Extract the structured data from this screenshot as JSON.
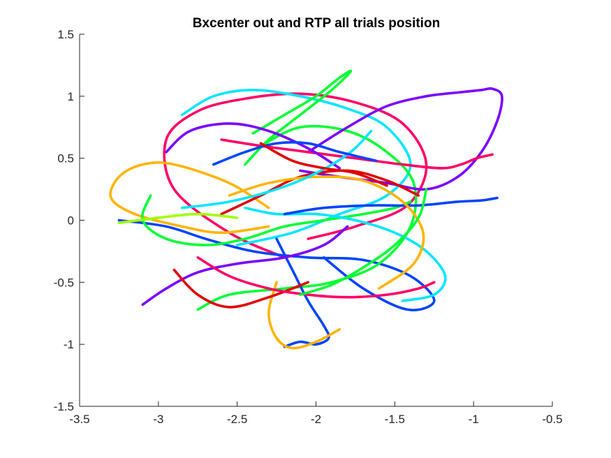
{
  "chart_data": {
    "type": "line",
    "title": "Bxcenter out and RTP all trials position",
    "xlabel": "",
    "ylabel": "",
    "xlim": [
      -3.5,
      -0.5
    ],
    "ylim": [
      -1.5,
      1.5
    ],
    "xticks": [
      -3.5,
      -3,
      -2.5,
      -2,
      -1.5,
      -1,
      -0.5
    ],
    "xtick_labels": [
      "-3.5",
      "-3",
      "-2.5",
      "-2",
      "-1.5",
      "-1",
      "-0.5"
    ],
    "yticks": [
      -1.5,
      -1,
      -0.5,
      0,
      0.5,
      1,
      1.5
    ],
    "ytick_labels": [
      "-1.5",
      "-1",
      "-0.5",
      "0",
      "0.5",
      "1",
      "1.5"
    ],
    "grid": false,
    "legend": "none",
    "colors": [
      "#7a00ff",
      "#0044ff",
      "#00e5ff",
      "#00ff33",
      "#ffb400",
      "#ff0066",
      "#e00000",
      "#a0ff00"
    ],
    "series": [
      {
        "color": "#ff0066",
        "x": [
          -2.2,
          -2.55,
          -2.9,
          -2.95,
          -2.75,
          -2.45,
          -2.1,
          -1.75,
          -1.45,
          -1.3,
          -1.42,
          -1.75,
          -2.05
        ],
        "y": [
          -0.3,
          -0.1,
          0.25,
          0.65,
          0.88,
          0.98,
          1.02,
          0.95,
          0.78,
          0.45,
          0.12,
          -0.05,
          -0.15
        ]
      },
      {
        "color": "#00e5ff",
        "x": [
          -2.85,
          -2.65,
          -2.4,
          -2.1,
          -1.8,
          -1.55,
          -1.4,
          -1.55,
          -1.85,
          -2.15,
          -2.5
        ],
        "y": [
          0.85,
          1.0,
          1.05,
          1.0,
          0.9,
          0.75,
          0.45,
          0.2,
          0.05,
          -0.1,
          -0.2
        ]
      },
      {
        "color": "#0044ff",
        "x": [
          -3.25,
          -2.95,
          -2.7,
          -2.4,
          -2.05,
          -1.7,
          -1.4,
          -1.25,
          -1.42,
          -1.7,
          -1.95
        ],
        "y": [
          0.0,
          -0.05,
          -0.15,
          -0.25,
          -0.3,
          -0.32,
          -0.45,
          -0.65,
          -0.72,
          -0.55,
          -0.3
        ]
      },
      {
        "color": "#ffb400",
        "x": [
          -2.3,
          -2.55,
          -2.9,
          -3.1,
          -3.25,
          -3.3,
          -3.15,
          -2.85,
          -2.6,
          -2.3
        ],
        "y": [
          0.1,
          0.3,
          0.45,
          0.45,
          0.35,
          0.18,
          0.05,
          -0.05,
          -0.1,
          -0.05
        ]
      },
      {
        "color": "#00ff33",
        "x": [
          -2.75,
          -2.55,
          -2.2,
          -1.9,
          -1.6,
          -1.4,
          -1.38,
          -1.55,
          -1.8,
          -2.1,
          -2.35
        ],
        "y": [
          -0.72,
          -0.6,
          -0.55,
          -0.5,
          -0.35,
          -0.05,
          0.3,
          0.55,
          0.72,
          0.75,
          0.6
        ]
      },
      {
        "color": "#7a00ff",
        "x": [
          -2.05,
          -1.8,
          -1.55,
          -1.3,
          -1.1,
          -0.95,
          -0.88,
          -0.82,
          -0.85,
          -0.95,
          -1.1,
          -1.3,
          -1.55,
          -1.85,
          -2.1
        ],
        "y": [
          0.55,
          0.75,
          0.92,
          1.0,
          1.03,
          1.05,
          1.06,
          1.0,
          0.8,
          0.55,
          0.35,
          0.25,
          0.3,
          0.35,
          0.4
        ]
      },
      {
        "color": "#e00000",
        "x": [
          -2.6,
          -2.35,
          -2.1,
          -1.8,
          -1.55,
          -1.35
        ],
        "y": [
          0.05,
          0.2,
          0.35,
          0.4,
          0.32,
          0.2
        ]
      },
      {
        "color": "#0044ff",
        "x": [
          -2.25,
          -2.15,
          -2.05,
          -1.95,
          -1.92,
          -2.0,
          -2.1,
          -2.2
        ],
        "y": [
          -0.15,
          -0.4,
          -0.65,
          -0.85,
          -0.95,
          -1.0,
          -0.98,
          -1.02
        ]
      },
      {
        "color": "#ffb400",
        "x": [
          -2.25,
          -2.3,
          -2.25,
          -2.15,
          -2.0,
          -1.85
        ],
        "y": [
          -0.5,
          -0.75,
          -0.95,
          -1.03,
          -0.98,
          -0.88
        ]
      },
      {
        "color": "#00ff33",
        "x": [
          -3.05,
          -3.1,
          -2.95,
          -2.7,
          -2.45,
          -2.2,
          -1.95,
          -1.7,
          -1.5,
          -1.4
        ],
        "y": [
          0.2,
          0.0,
          -0.15,
          -0.2,
          -0.15,
          -0.05,
          0.0,
          0.05,
          0.1,
          0.15
        ]
      },
      {
        "color": "#7a00ff",
        "x": [
          -3.1,
          -2.95,
          -2.75,
          -2.5,
          -2.2,
          -1.95,
          -1.8
        ],
        "y": [
          -0.68,
          -0.55,
          -0.42,
          -0.35,
          -0.3,
          -0.2,
          -0.05
        ]
      },
      {
        "color": "#00e5ff",
        "x": [
          -2.45,
          -2.25,
          -2.0,
          -1.75,
          -1.5,
          -1.3,
          -1.18,
          -1.25,
          -1.45
        ],
        "y": [
          0.1,
          0.05,
          0.05,
          0.0,
          -0.1,
          -0.25,
          -0.45,
          -0.6,
          -0.65
        ]
      },
      {
        "color": "#ff0066",
        "x": [
          -2.6,
          -2.35,
          -2.05,
          -1.75,
          -1.45,
          -1.2,
          -1.08,
          -0.98,
          -0.88
        ],
        "y": [
          0.65,
          0.6,
          0.55,
          0.5,
          0.45,
          0.42,
          0.45,
          0.5,
          0.53
        ]
      },
      {
        "color": "#a0ff00",
        "x": [
          -3.25,
          -3.0,
          -2.75,
          -2.5
        ],
        "y": [
          -0.02,
          0.02,
          0.05,
          0.02
        ]
      },
      {
        "color": "#0044ff",
        "x": [
          -2.2,
          -1.95,
          -1.65,
          -1.35,
          -1.1,
          -0.95,
          -0.85
        ],
        "y": [
          0.05,
          0.1,
          0.12,
          0.12,
          0.15,
          0.16,
          0.18
        ]
      },
      {
        "color": "#e00000",
        "x": [
          -2.9,
          -2.75,
          -2.55,
          -2.3,
          -2.05
        ],
        "y": [
          -0.4,
          -0.6,
          -0.7,
          -0.62,
          -0.5
        ]
      },
      {
        "color": "#00ff33",
        "x": [
          -2.4,
          -2.2,
          -2.0,
          -1.85,
          -1.78,
          -1.9,
          -2.1,
          -2.3,
          -2.45
        ],
        "y": [
          0.7,
          0.85,
          1.0,
          1.15,
          1.2,
          1.05,
          0.85,
          0.65,
          0.45
        ]
      },
      {
        "color": "#ffb400",
        "x": [
          -2.55,
          -2.3,
          -2.0,
          -1.7,
          -1.45,
          -1.32,
          -1.38,
          -1.6
        ],
        "y": [
          0.2,
          0.3,
          0.35,
          0.32,
          0.15,
          -0.1,
          -0.35,
          -0.55
        ]
      },
      {
        "color": "#7a00ff",
        "x": [
          -2.95,
          -2.8,
          -2.55,
          -2.3,
          -2.05,
          -1.85
        ],
        "y": [
          0.55,
          0.72,
          0.78,
          0.72,
          0.58,
          0.42
        ]
      },
      {
        "color": "#00e5ff",
        "x": [
          -2.85,
          -2.55,
          -2.25,
          -2.0,
          -1.78,
          -1.65
        ],
        "y": [
          0.1,
          0.15,
          0.25,
          0.38,
          0.55,
          0.72
        ]
      },
      {
        "color": "#ff0066",
        "x": [
          -2.75,
          -2.55,
          -2.3,
          -2.05,
          -1.8,
          -1.55,
          -1.35,
          -1.25
        ],
        "y": [
          -0.3,
          -0.45,
          -0.55,
          -0.6,
          -0.62,
          -0.6,
          -0.55,
          -0.5
        ]
      },
      {
        "color": "#00ff33",
        "x": [
          -2.1,
          -1.9,
          -1.7,
          -1.5,
          -1.35,
          -1.3
        ],
        "y": [
          -0.6,
          -0.52,
          -0.38,
          -0.2,
          0.02,
          0.25
        ]
      },
      {
        "color": "#0044ff",
        "x": [
          -2.65,
          -2.45,
          -2.25,
          -2.05,
          -1.85,
          -1.62
        ],
        "y": [
          0.45,
          0.55,
          0.62,
          0.62,
          0.55,
          0.48
        ]
      },
      {
        "color": "#e00000",
        "x": [
          -2.35,
          -2.15,
          -1.95,
          -1.75,
          -1.55
        ],
        "y": [
          0.62,
          0.48,
          0.42,
          0.38,
          0.28
        ]
      }
    ]
  }
}
